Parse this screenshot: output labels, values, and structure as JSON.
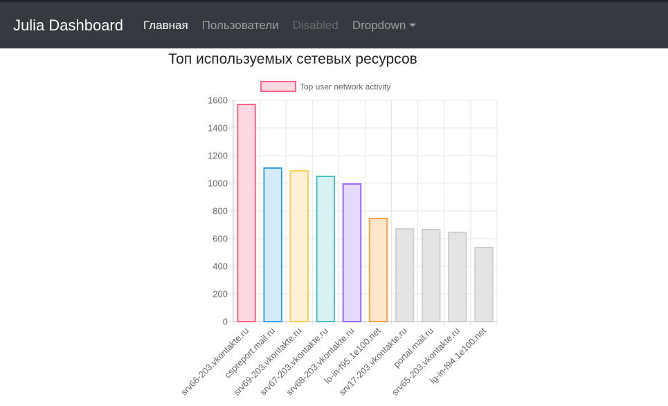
{
  "navbar": {
    "brand": "Julia Dashboard",
    "items": [
      {
        "label": "Главная",
        "state": "active"
      },
      {
        "label": "Пользователи",
        "state": "normal"
      },
      {
        "label": "Disabled",
        "state": "disabled"
      },
      {
        "label": "Dropdown",
        "state": "dropdown"
      }
    ]
  },
  "page": {
    "title": "Топ используемых сетевых ресурсов"
  },
  "chart_data": {
    "type": "bar",
    "title": "Топ используемых сетевых ресурсов",
    "legend": {
      "label": "Top user network activity",
      "placement": "top"
    },
    "categories": [
      "srv66-203.vkontakte.ru",
      "cspreport.mail.ru",
      "srv69-203.vkontakte.ru",
      "srv67-203.vkontakte.ru",
      "srv68-203.vkontakte.ru",
      "lo-in-f95.1e100.net",
      "srv17-203.vkontakte.ru",
      "portal.mail.ru",
      "srv65-203.vkontakte.ru",
      "lg-in-f94.1e100.net"
    ],
    "series": [
      {
        "name": "Top user network activity",
        "values": [
          1570,
          1110,
          1090,
          1050,
          995,
          745,
          670,
          665,
          645,
          535
        ]
      }
    ],
    "ylim": [
      0,
      1600
    ],
    "yticks": [
      0,
      200,
      400,
      600,
      800,
      1000,
      1200,
      1400,
      1600
    ],
    "grid": true,
    "colors": {
      "fills": [
        "#ffd9e1",
        "#d4ebfa",
        "#fff1d6",
        "#d6f2f2",
        "#e6d9ff",
        "#ffe6cd",
        "#e4e4e4",
        "#e4e4e4",
        "#e4e4e4",
        "#e4e4e4"
      ],
      "borders": [
        "#ff6384",
        "#36a2eb",
        "#ffce56",
        "#4bc0c0",
        "#9966ff",
        "#ff9f40",
        "#cfcfcf",
        "#cfcfcf",
        "#cfcfcf",
        "#cfcfcf"
      ],
      "grid": "#e5e5e5",
      "axis": "#bdbdbd",
      "text": "#666666"
    }
  }
}
